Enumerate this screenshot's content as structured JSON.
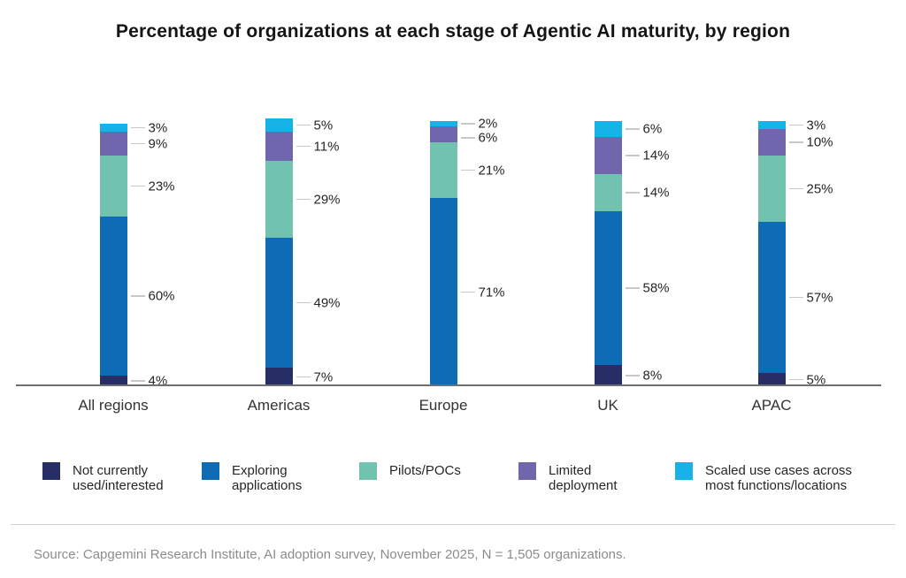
{
  "header": {
    "title": "Percentage of organizations at each stage of Agentic AI maturity, by region"
  },
  "chart_data": {
    "type": "bar",
    "stacked": true,
    "orientation": "vertical",
    "categories": [
      "All regions",
      "Americas",
      "Europe",
      "UK",
      "APAC"
    ],
    "series": [
      {
        "name": "Not currently used/interested",
        "color": "#272e66",
        "values": [
          4,
          7,
          0,
          8,
          5
        ]
      },
      {
        "name": "Exploring applications",
        "color": "#0d6cb5",
        "values": [
          60,
          49,
          71,
          58,
          57
        ]
      },
      {
        "name": "Pilots/POCs",
        "color": "#72c2b0",
        "values": [
          23,
          29,
          21,
          14,
          25
        ]
      },
      {
        "name": "Limited deployment",
        "color": "#7066ae",
        "values": [
          9,
          11,
          6,
          14,
          10
        ]
      },
      {
        "name": "Scaled use cases across most functions/locations",
        "color": "#16b2e8",
        "values": [
          3,
          5,
          2,
          6,
          3
        ]
      }
    ],
    "value_suffix": "%",
    "ylim": [
      0,
      100
    ],
    "grid": false,
    "legend_position": "bottom",
    "value_labels": "outside-right"
  },
  "footer": {
    "source": "Source: Capgemini Research Institute, AI adoption survey, November 2025, N = 1,505 organizations."
  }
}
